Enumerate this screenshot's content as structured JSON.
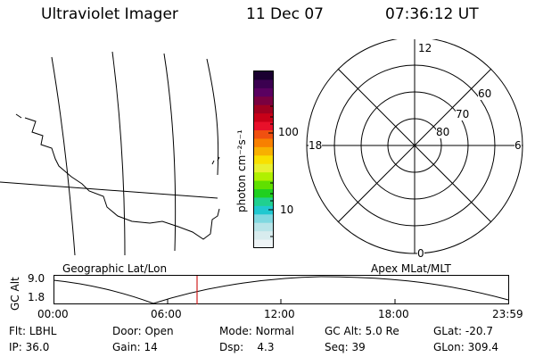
{
  "header": {
    "title": "Ultraviolet Imager",
    "date": "11 Dec 07",
    "time": "07:36:12 UT"
  },
  "map_panel": {
    "label": "Geographic Lat/Lon"
  },
  "colorbar": {
    "unit_label": "photon cm⁻²s⁻¹",
    "ticks": [
      "100",
      "10"
    ],
    "colors": [
      "#1a0030",
      "#3b0050",
      "#5a0060",
      "#7a0040",
      "#a00020",
      "#c80018",
      "#e8102a",
      "#f05010",
      "#f88000",
      "#f8b000",
      "#f8e000",
      "#e8f030",
      "#b0f000",
      "#60e000",
      "#20d020",
      "#20d090",
      "#20c8d0",
      "#80d8e0",
      "#b8e4e8",
      "#d8ecee",
      "#eef4f6"
    ]
  },
  "polar_plot": {
    "label": "Apex MLat/MLT",
    "mlt_labels": {
      "top": "12",
      "left": "18",
      "right": "6",
      "bottom": "0"
    },
    "lat_labels": [
      "60",
      "70",
      "80"
    ]
  },
  "timeline": {
    "ylabel": "GC Alt",
    "yticks": [
      "9.0",
      "1.8"
    ],
    "xticks": [
      "00:00",
      "06:00",
      "12:00",
      "18:00",
      "23:59"
    ],
    "marker_color": "#d02020"
  },
  "footer": {
    "row1": [
      {
        "label": "Flt:",
        "value": "LBHL"
      },
      {
        "label": "Door:",
        "value": "Open"
      },
      {
        "label": "Mode:",
        "value": "Normal"
      },
      {
        "label": "GC Alt:",
        "value": "5.0 Re"
      },
      {
        "label": "GLat:",
        "value": "-20.7"
      }
    ],
    "row2": [
      {
        "label": "IP:",
        "value": "36.0"
      },
      {
        "label": "Gain:",
        "value": "14"
      },
      {
        "label": "Dsp:",
        "value": "4.3"
      },
      {
        "label": "Seq:",
        "value": "39"
      },
      {
        "label": "GLon:",
        "value": "309.4"
      }
    ]
  }
}
